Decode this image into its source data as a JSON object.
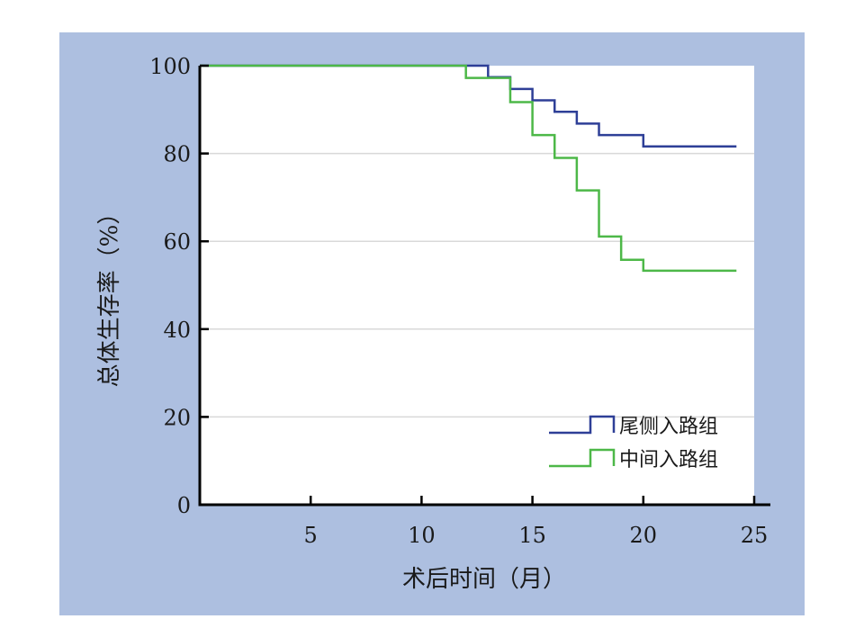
{
  "colors": {
    "frame_background": "#adbfe0",
    "plot_background": "#ffffff",
    "gridline": "#d9d9d9",
    "axis": "#000000"
  },
  "chart_data": {
    "type": "line",
    "subtype": "kaplan-meier step",
    "title": "",
    "xlabel": "术后时间（月）",
    "ylabel": "总体生存率（%）",
    "xlim": [
      0,
      25
    ],
    "ylim": [
      0,
      100
    ],
    "xticks": [
      5,
      10,
      15,
      20,
      25
    ],
    "yticks": [
      0,
      20,
      40,
      60,
      80,
      100
    ],
    "grid": "horizontal",
    "legend_position": "bottom-right",
    "series": [
      {
        "name": "尾侧入路组",
        "color": "#2e3f97",
        "steps": [
          [
            0,
            100
          ],
          [
            13,
            97.4
          ],
          [
            14,
            94.7
          ],
          [
            15,
            92.1
          ],
          [
            16,
            89.5
          ],
          [
            17,
            86.8
          ],
          [
            18,
            84.2
          ],
          [
            20,
            81.6
          ],
          [
            24.2,
            81.6
          ]
        ]
      },
      {
        "name": "中间入路组",
        "color": "#4db848",
        "steps": [
          [
            0,
            100
          ],
          [
            12,
            97.2
          ],
          [
            14,
            91.7
          ],
          [
            15,
            84.2
          ],
          [
            16,
            79.0
          ],
          [
            17,
            71.6
          ],
          [
            18,
            61.1
          ],
          [
            19,
            55.8
          ],
          [
            20,
            53.3
          ],
          [
            24.2,
            53.3
          ]
        ]
      }
    ]
  }
}
